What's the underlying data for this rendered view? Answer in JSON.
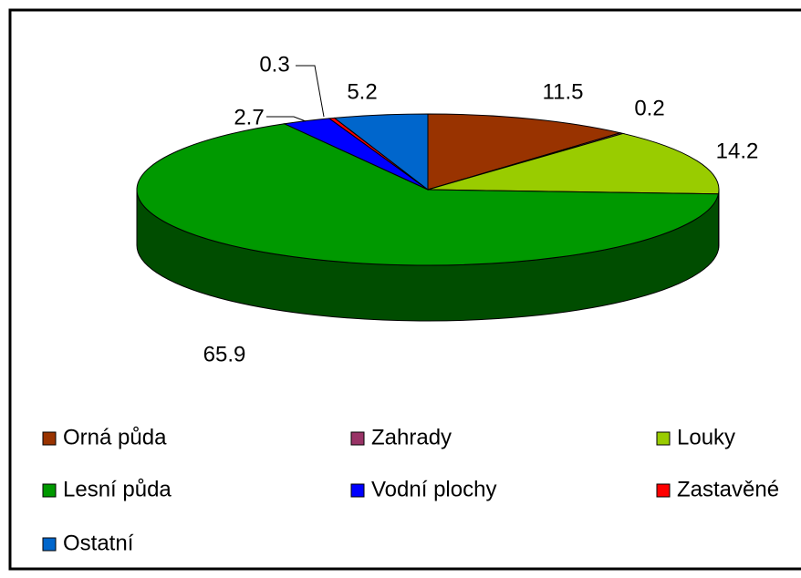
{
  "chart_data": {
    "type": "pie",
    "categories": [
      "Orná půda",
      "Zahrady",
      "Louky",
      "Lesní půda",
      "Vodní plochy",
      "Zastavěné",
      "Ostatní"
    ],
    "values": [
      11.5,
      0.2,
      14.2,
      65.9,
      2.7,
      0.3,
      5.2
    ],
    "colors": [
      "#993300",
      "#993366",
      "#99cc00",
      "#009900",
      "#0000ff",
      "#ff0000",
      "#0066cc"
    ],
    "legend": "bottom"
  }
}
